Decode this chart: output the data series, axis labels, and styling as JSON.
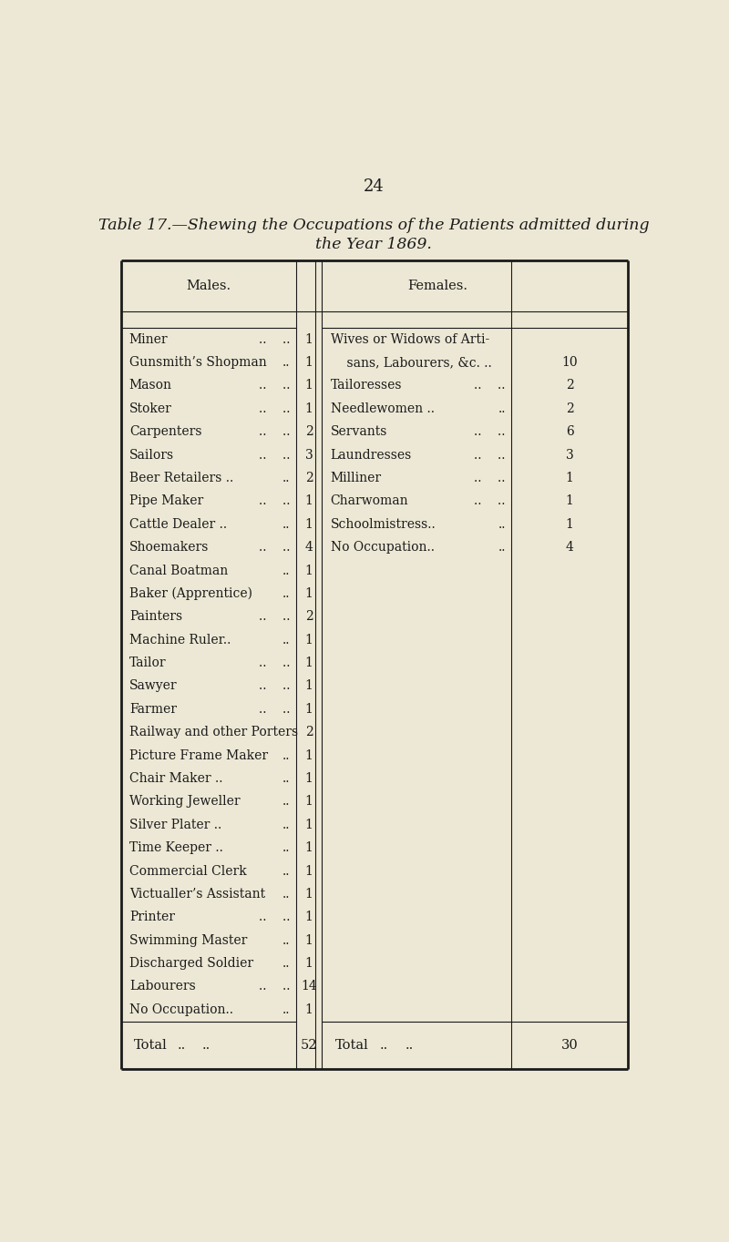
{
  "page_number": "24",
  "title_line1": "Table 17.—Shewing the Occupations of the Patients admitted during",
  "title_line2": "the Year 1869.",
  "bg_color": "#ede8d5",
  "font_color": "#1a1a1a",
  "males_header": "Males.",
  "females_header": "Females.",
  "males_rows": [
    {
      "label": "Miner",
      "dots": "..    ..",
      "val": "1"
    },
    {
      "label": "Gunsmith’s Shopman",
      "dots": "..",
      "val": "1"
    },
    {
      "label": "Mason",
      "dots": "..    ..",
      "val": "1"
    },
    {
      "label": "Stoker",
      "dots": "..    ..",
      "val": "1"
    },
    {
      "label": "Carpenters",
      "dots": "..    ..",
      "val": "2"
    },
    {
      "label": "Sailors",
      "dots": "..    ..",
      "val": "3"
    },
    {
      "label": "Beer Retailers ..",
      "dots": "..",
      "val": "2"
    },
    {
      "label": "Pipe Maker",
      "dots": "..    ..",
      "val": "1"
    },
    {
      "label": "Cattle Dealer ..",
      "dots": "..",
      "val": "1"
    },
    {
      "label": "Shoemakers",
      "dots": "..    ..",
      "val": "4"
    },
    {
      "label": "Canal Boatman",
      "dots": "..",
      "val": "1"
    },
    {
      "label": "Baker (Apprentice)",
      "dots": "..",
      "val": "1"
    },
    {
      "label": "Painters",
      "dots": "..    ..",
      "val": "2"
    },
    {
      "label": "Machine Ruler..",
      "dots": "..",
      "val": "1"
    },
    {
      "label": "Tailor",
      "dots": "..    ..",
      "val": "1"
    },
    {
      "label": "Sawyer",
      "dots": "..    ..",
      "val": "1"
    },
    {
      "label": "Farmer",
      "dots": "..    ..",
      "val": "1"
    },
    {
      "label": "Railway and other Porters",
      "dots": "",
      "val": "2"
    },
    {
      "label": "Picture Frame Maker",
      "dots": "..",
      "val": "1"
    },
    {
      "label": "Chair Maker ..",
      "dots": "..",
      "val": "1"
    },
    {
      "label": "Working Jeweller",
      "dots": "..",
      "val": "1"
    },
    {
      "label": "Silver Plater ..",
      "dots": "..",
      "val": "1"
    },
    {
      "label": "Time Keeper ..",
      "dots": "..",
      "val": "1"
    },
    {
      "label": "Commercial Clerk",
      "dots": "..",
      "val": "1"
    },
    {
      "label": "Victualler’s Assistant",
      "dots": "..",
      "val": "1"
    },
    {
      "label": "Printer",
      "dots": "..    ..",
      "val": "1"
    },
    {
      "label": "Swimming Master",
      "dots": "..",
      "val": "1"
    },
    {
      "label": "Discharged Soldier",
      "dots": "..",
      "val": "1"
    },
    {
      "label": "Labourers",
      "dots": "..    ..",
      "val": "14"
    },
    {
      "label": "No Occupation..",
      "dots": "..",
      "val": "1"
    }
  ],
  "females_rows": [
    {
      "label": "Wives or Widows of Arti-",
      "dots": "",
      "val": ""
    },
    {
      "label": "    sans, Labourers, &c. ..",
      "dots": "",
      "val": "10"
    },
    {
      "label": "Tailoresses",
      "dots": "..    ..",
      "val": "2"
    },
    {
      "label": "Needlewomen ..",
      "dots": "..",
      "val": "2"
    },
    {
      "label": "Servants",
      "dots": "..    ..",
      "val": "6"
    },
    {
      "label": "Laundresses",
      "dots": "..    ..",
      "val": "3"
    },
    {
      "label": "Milliner",
      "dots": "..    ..",
      "val": "1"
    },
    {
      "label": "Charwoman",
      "dots": "..    ..",
      "val": "1"
    },
    {
      "label": "Schoolmistress..",
      "dots": "..",
      "val": "1"
    },
    {
      "label": "No Occupation..",
      "dots": "..",
      "val": "4"
    }
  ],
  "males_total": "52",
  "females_total": "30",
  "title_fontsize": 12.5,
  "header_fontsize": 10.5,
  "row_fontsize": 10,
  "total_fontsize": 10.5
}
